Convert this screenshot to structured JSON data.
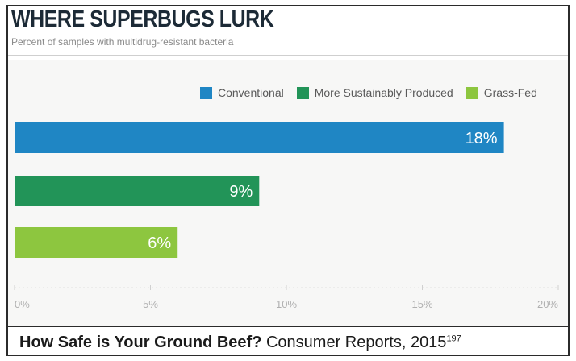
{
  "header": {
    "title": "WHERE SUPERBUGS LURK",
    "subtitle": "Percent of samples with multidrug-resistant bacteria"
  },
  "legend": [
    {
      "label": "Conventional",
      "color": "#1f86c4"
    },
    {
      "label": "More Sustainably Produced",
      "color": "#229458"
    },
    {
      "label": "Grass-Fed",
      "color": "#8dc63f"
    }
  ],
  "chart_data": {
    "type": "bar",
    "orientation": "horizontal",
    "categories": [
      "Conventional",
      "More Sustainably Produced",
      "Grass-Fed"
    ],
    "values": [
      18,
      9,
      6
    ],
    "data_labels": [
      "18%",
      "9%",
      "6%"
    ],
    "colors": [
      "#1f86c4",
      "#229458",
      "#8dc63f"
    ],
    "xlim": [
      0,
      20
    ],
    "xticks": [
      0,
      5,
      10,
      15,
      20
    ],
    "xtick_labels": [
      "0%",
      "5%",
      "10%",
      "15%",
      "20%"
    ],
    "grid": false,
    "legend_position": "top-right"
  },
  "caption": {
    "title": "How Safe is Your Ground Beef?",
    "source": "Consumer Reports, 2015",
    "footnote": "197"
  }
}
